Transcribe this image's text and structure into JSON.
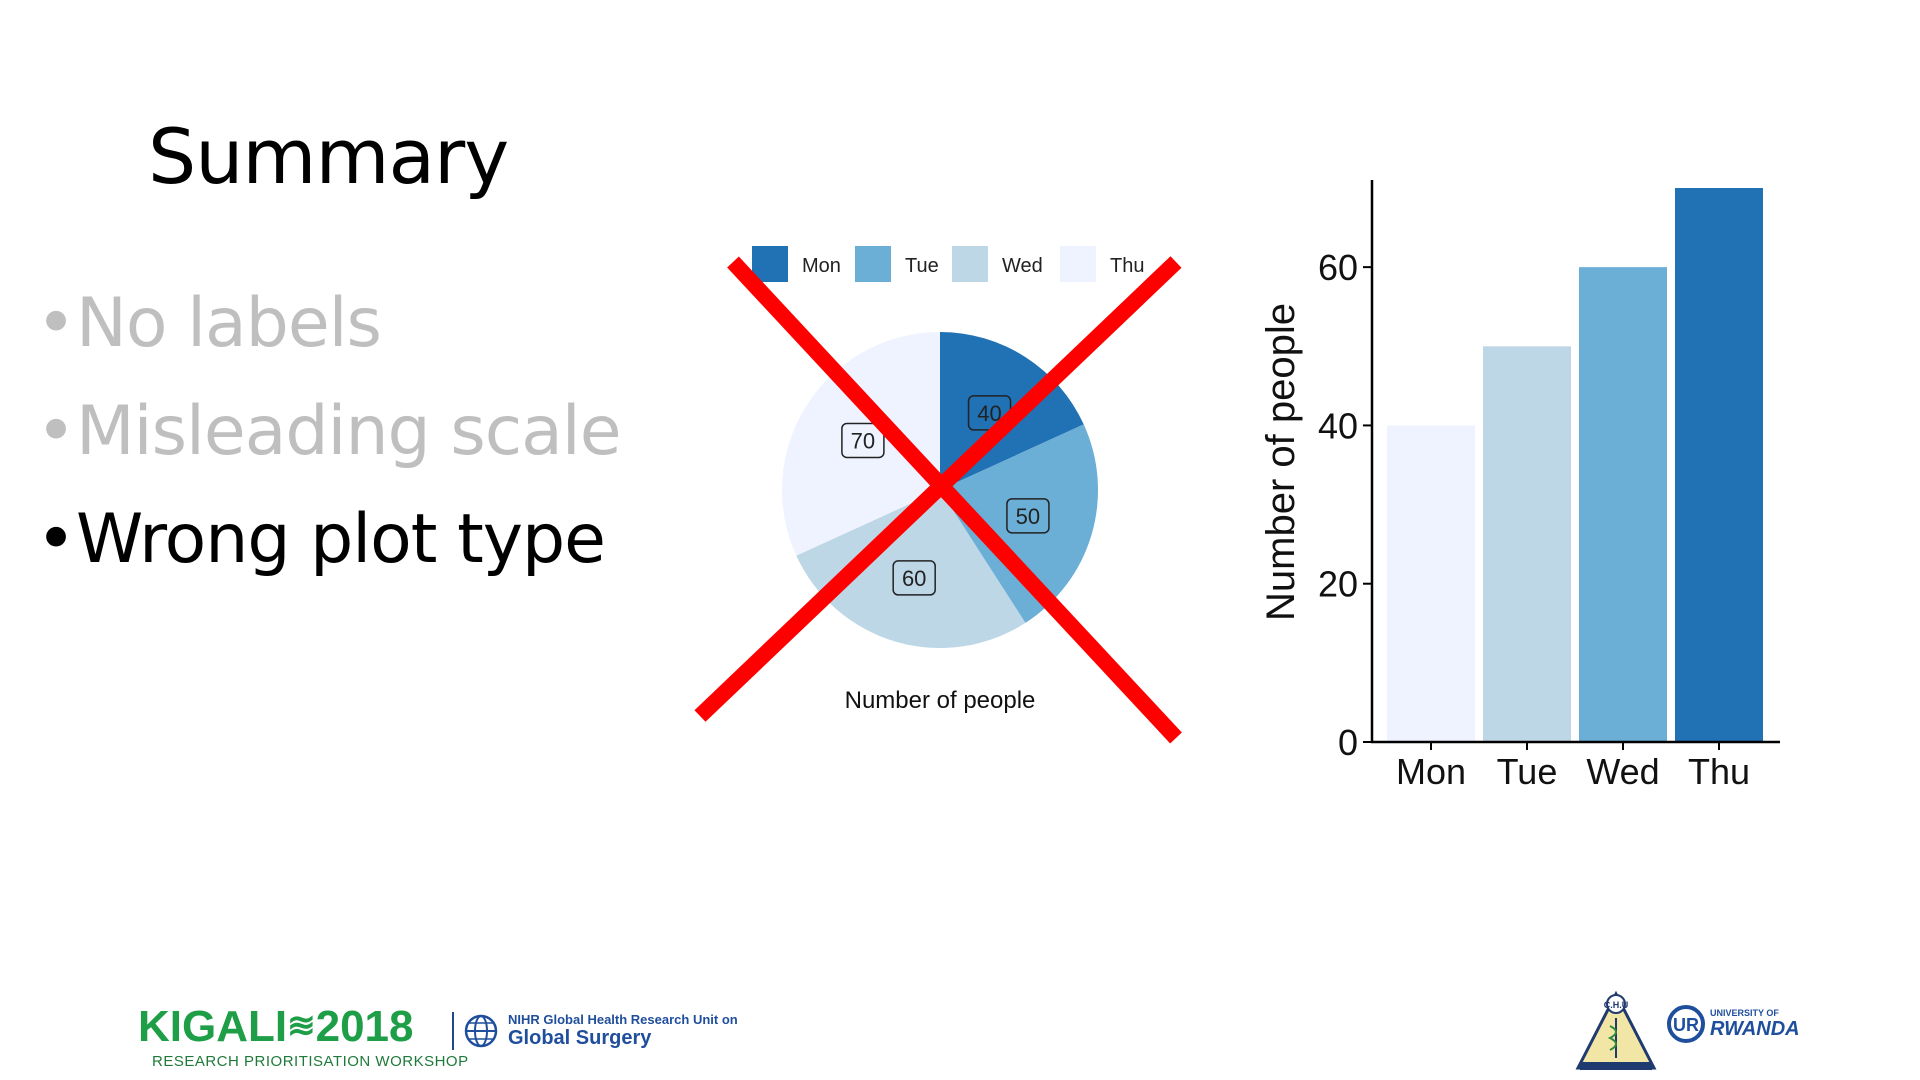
{
  "slide": {
    "title": "Summary",
    "bullets": [
      {
        "text": "No labels",
        "state": "dimmed"
      },
      {
        "text": "Misleading scale",
        "state": "dimmed"
      },
      {
        "text": "Wrong plot type",
        "state": "active"
      }
    ]
  },
  "colors": {
    "mon": "#2171b5",
    "tue": "#6baed6",
    "wed": "#bdd7e7",
    "thu": "#eff3ff",
    "cross": "#ff0000",
    "dim_text": "#bfbfbf"
  },
  "chart_data": [
    {
      "type": "pie",
      "categories": [
        "Mon",
        "Tue",
        "Wed",
        "Thu"
      ],
      "values": [
        40,
        50,
        60,
        70
      ],
      "legend_entries": [
        "Mon",
        "Tue",
        "Wed",
        "Thu"
      ],
      "legend_position": "top",
      "xlabel": "Number of people",
      "data_labels": [
        "40",
        "50",
        "60",
        "70"
      ],
      "crossed_out": true
    },
    {
      "type": "bar",
      "categories": [
        "Mon",
        "Tue",
        "Wed",
        "Thu"
      ],
      "values": [
        40,
        50,
        60,
        70
      ],
      "ylabel": "Number of people",
      "yticks": [
        0,
        20,
        40,
        60
      ],
      "ylim": [
        0,
        70
      ]
    }
  ],
  "footer": {
    "kigali_word": "KIGALI",
    "kigali_year": "2018",
    "kigali_sub": "RESEARCH PRIORITISATION WORKSHOP",
    "nihr_line1": "NIHR Global Health Research Unit on",
    "nihr_line2": "Global Surgery",
    "chu_label": "C.H.U",
    "ur_uni": "UNIVERSITY OF",
    "ur_rwanda": "RWANDA"
  }
}
